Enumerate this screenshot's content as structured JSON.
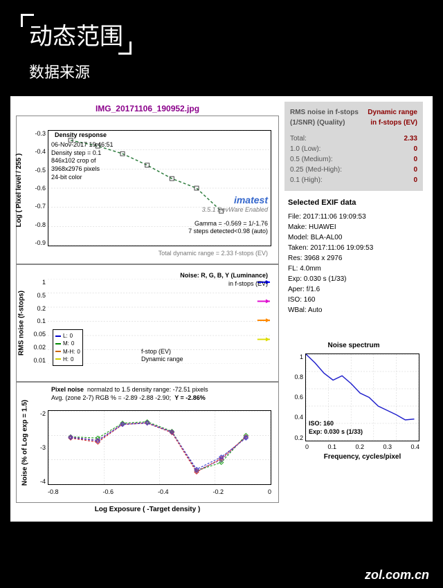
{
  "header": {
    "title": "动态范围",
    "subtitle": "数据来源"
  },
  "chart1": {
    "title": "IMG_20171106_190952.jpg",
    "panel_label": "Density response",
    "info_lines": [
      "06-Nov-2017 19:46:51",
      "Density step = 0.1",
      "846x102 crop of",
      "3968x2976 pixels",
      "24-bit color"
    ],
    "gamma_line": "Gamma = -0.569 = 1/-1.76",
    "steps_line": "7 steps detected<0.98 (auto)",
    "total_line": "Total dynamic range = 2.33 f-stops (EV)",
    "imatest": "imatest",
    "version": "3.5.1 DevWare Enabled",
    "ylabel": "Log ( Pixel level / 255 )",
    "yticks": [
      "-0.3",
      "-0.4",
      "-0.5",
      "-0.6",
      "-0.7",
      "-0.8",
      "-0.9"
    ],
    "xvals": [
      -0.76,
      -0.65,
      -0.55,
      -0.45,
      -0.35,
      -0.25,
      -0.15
    ],
    "yvals": [
      -0.35,
      -0.38,
      -0.42,
      -0.48,
      -0.55,
      -0.6,
      -0.72
    ],
    "ylim": [
      -0.9,
      -0.3
    ],
    "line_color": "#2a7a3a",
    "marker_color": "#444444"
  },
  "chart2": {
    "title": "Noise: R, G, B, Y (Luminance)",
    "subtitle": "in f-stops (EV)",
    "ylabel": "RMS noise (f-stops)",
    "yticks": [
      "1",
      "0.5",
      "0.2",
      "0.1",
      "0.05",
      "0.02",
      "0.01"
    ],
    "legend": [
      {
        "label": "L:",
        "val": "0",
        "color": "#0000cc"
      },
      {
        "label": "M:",
        "val": "0",
        "color": "#008800"
      },
      {
        "label": "M-H:",
        "val": "0",
        "color": "#cc6600"
      },
      {
        "label": "H:",
        "val": "0",
        "color": "#cccc00"
      }
    ],
    "fstop_label": "f-stop (EV)",
    "dr_label": "Dynamic range",
    "arrow_colors": [
      "#0000ff",
      "#e010d0",
      "#ff8800",
      "#dddd00"
    ]
  },
  "chart3": {
    "title": "Pixel noise",
    "norm_text": "normalzd to 1.5 density range: -72.51 pixels",
    "avg_text": "Avg. (zone 2-7) RGB % = -2.89 -2.88 -2.90;",
    "y_text": "Y = -2.86%",
    "ylabel": "Noise (% of Log exp = 1.5)",
    "xlabel": "Log Exposure ( -Target density )",
    "yticks": [
      "-2",
      "-3",
      "-4"
    ],
    "xticks": [
      "-0.8",
      "-0.6",
      "-0.4",
      "-0.2",
      "0"
    ],
    "xvals": [
      -0.76,
      -0.65,
      -0.55,
      -0.45,
      -0.35,
      -0.25,
      -0.15,
      -0.05
    ],
    "series": {
      "R": {
        "color": "#d02020",
        "yvals": [
          -2.8,
          -2.95,
          -2.3,
          -2.25,
          -2.6,
          -4.05,
          -3.55,
          -2.75
        ]
      },
      "G": {
        "color": "#20a020",
        "yvals": [
          -2.75,
          -2.8,
          -2.25,
          -2.2,
          -2.55,
          -4.0,
          -3.7,
          -2.7
        ]
      },
      "B": {
        "color": "#4040d0",
        "yvals": [
          -2.78,
          -2.9,
          -2.3,
          -2.25,
          -2.58,
          -3.95,
          -3.5,
          -2.8
        ]
      },
      "Y": {
        "color": "#8040a0",
        "yvals": [
          -2.76,
          -2.88,
          -2.28,
          -2.23,
          -2.57,
          -4.0,
          -3.6,
          -2.76
        ]
      }
    },
    "ylim": [
      -4.5,
      -1.8
    ],
    "xlim": [
      -0.85,
      0.05
    ]
  },
  "info_panel": {
    "rms_title": "RMS noise in f-stops (1/SNR) (Quality)",
    "dr_title": "Dynamic range in f-stops (EV)",
    "rows": [
      {
        "label": "Total:",
        "val": "2.33"
      },
      {
        "label": "1.0  (Low):",
        "val": "0"
      },
      {
        "label": "0.5  (Medium):",
        "val": "0"
      },
      {
        "label": "0.25 (Med-High):",
        "val": "0"
      },
      {
        "label": "0.1  (High):",
        "val": "0"
      }
    ]
  },
  "exif": {
    "title": "Selected EXIF data",
    "rows": [
      "File:  2017:11:06 19:09:53",
      "Make:  HUAWEI",
      "Model:  BLA-AL00",
      "Taken:  2017:11:06 19:09:53",
      "Res:  3968 x 2976",
      "FL:  4.0mm",
      "Exp:  0.030 s  (1/33)",
      "Aper:  f/1.6",
      "ISO:  160",
      "WBal: Auto"
    ]
  },
  "spectrum": {
    "title": "Noise spectrum",
    "xlabel": "Frequency, cycles/pixel",
    "yticks": [
      "1",
      "0.8",
      "0.6",
      "0.4",
      "0.2"
    ],
    "xticks": [
      "0",
      "0.1",
      "0.2",
      "0.3",
      "0.4"
    ],
    "iso_line": "ISO:  160",
    "exp_line": "Exp:  0.030 s  (1/33)",
    "line_color": "#2020cc",
    "xvals": [
      0,
      0.04,
      0.08,
      0.12,
      0.16,
      0.2,
      0.24,
      0.28,
      0.32,
      0.36,
      0.4,
      0.44,
      0.48
    ],
    "yvals": [
      1.0,
      0.9,
      0.78,
      0.7,
      0.75,
      0.66,
      0.55,
      0.5,
      0.4,
      0.35,
      0.3,
      0.24,
      0.25
    ]
  },
  "footer": "zol.com.cn"
}
